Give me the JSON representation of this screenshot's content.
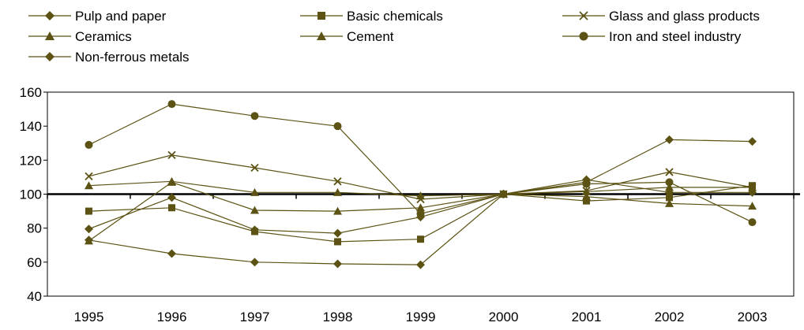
{
  "colors": {
    "series": "#5b5213",
    "axis": "#000000",
    "plot_border": "#000000"
  },
  "chart_data": {
    "type": "line",
    "title": "",
    "xlabel": "",
    "ylabel": "",
    "x": [
      "1995",
      "1996",
      "1997",
      "1998",
      "1999",
      "2000",
      "2001",
      "2002",
      "2003"
    ],
    "ylim": [
      40,
      160
    ],
    "yticks": [
      "40",
      "60",
      "80",
      "100",
      "120",
      "140",
      "160"
    ],
    "reference_line": 100,
    "grid": false,
    "legend_position": "top",
    "series": [
      {
        "name": "Pulp and paper",
        "marker": "diamond",
        "values": [
          73,
          65,
          60,
          59,
          58.5,
          100,
          107,
          132,
          131
        ]
      },
      {
        "name": "Basic chemicals",
        "marker": "square",
        "values": [
          90,
          92,
          78,
          72,
          73.5,
          100,
          96,
          98,
          105
        ]
      },
      {
        "name": "Glass and glass products",
        "marker": "x",
        "values": [
          110.5,
          123,
          115.5,
          107.5,
          97,
          100,
          102,
          113,
          104
        ]
      },
      {
        "name": "Ceramics",
        "marker": "triangle",
        "values": [
          105,
          107.5,
          101,
          101,
          99,
          100,
          101.5,
          104,
          104
        ]
      },
      {
        "name": "Cement",
        "marker": "triangle",
        "values": [
          72.5,
          107,
          90.5,
          90,
          92,
          100,
          98.5,
          94.5,
          93
        ]
      },
      {
        "name": "Iron and steel industry",
        "marker": "circle",
        "values": [
          129,
          153,
          146,
          140,
          88.5,
          100,
          106,
          107,
          83.5
        ]
      },
      {
        "name": "Non-ferrous metals",
        "marker": "diamond",
        "values": [
          79.5,
          98,
          79,
          77,
          86.5,
          100,
          108.5,
          101,
          101
        ]
      }
    ]
  }
}
